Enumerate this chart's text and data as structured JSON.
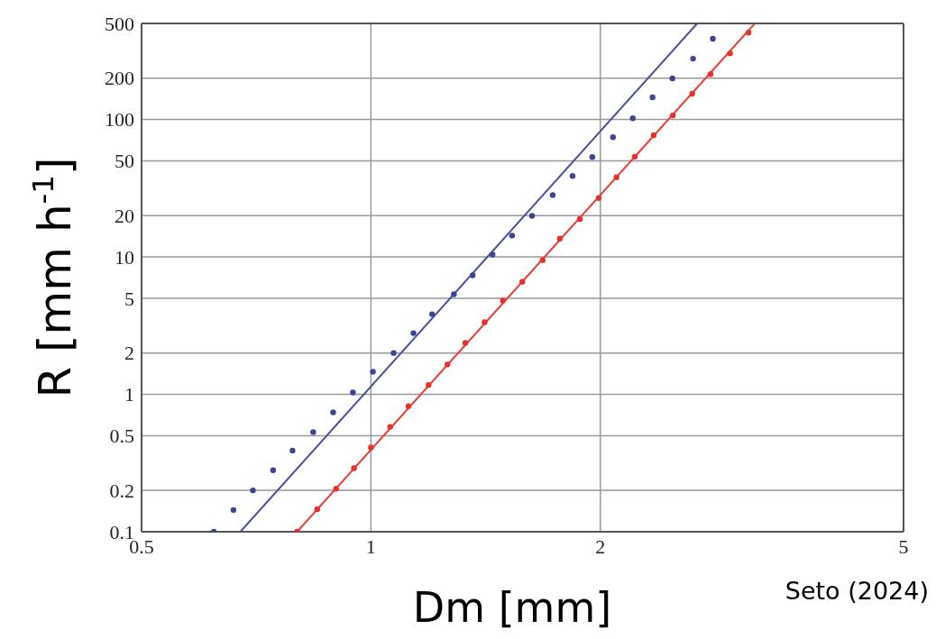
{
  "chart_data": {
    "type": "scatter",
    "xlabel": "Dm [mm]",
    "ylabel": "R [mm h$^{-1}$]",
    "log": "xy",
    "grid": true,
    "line_style": "solid",
    "xlim": [
      0.5,
      5
    ],
    "xticks": [
      0.5,
      1,
      2,
      5
    ],
    "ylim": [
      0.1,
      500
    ],
    "yticks": [
      0.1,
      0.2,
      0.5,
      1,
      2,
      5,
      10,
      20,
      50,
      100,
      200,
      500
    ],
    "annotations": [
      "Seto (2024)"
    ],
    "series": [
      {
        "marker": "circle",
        "color": "#3d4592",
        "x": [
          0.622,
          0.66,
          0.7,
          0.744,
          0.789,
          0.84,
          0.892,
          0.947,
          1.006,
          1.071,
          1.137,
          1.203,
          1.285,
          1.36,
          1.444,
          1.532,
          1.627,
          1.732,
          1.839,
          1.952,
          2.078,
          2.206,
          2.342,
          2.487,
          2.647,
          2.81
        ],
        "values": [
          0.1,
          0.144,
          0.2,
          0.28,
          0.39,
          0.53,
          0.74,
          1.03,
          1.46,
          2.0,
          2.79,
          3.83,
          5.35,
          7.34,
          10.4,
          14.3,
          19.9,
          28.2,
          38.8,
          53.3,
          74.3,
          102,
          145,
          199,
          277,
          387
        ]
      },
      {
        "marker": "circle",
        "color": "#e8302a",
        "x": [
          0.8,
          0.85,
          0.9,
          0.95,
          1.0,
          1.06,
          1.12,
          1.19,
          1.26,
          1.33,
          1.41,
          1.49,
          1.58,
          1.68,
          1.77,
          1.88,
          1.99,
          2.1,
          2.22,
          2.35,
          2.49,
          2.64,
          2.79,
          2.96,
          3.13
        ],
        "values": [
          0.1,
          0.146,
          0.206,
          0.29,
          0.41,
          0.58,
          0.82,
          1.17,
          1.65,
          2.37,
          3.35,
          4.81,
          6.59,
          9.47,
          13.6,
          18.9,
          26.8,
          37.9,
          53.6,
          76.9,
          107,
          154,
          214,
          303,
          429
        ]
      },
      {
        "type": "line",
        "marker": "none",
        "color": "#4a4f9e",
        "x": [
          0.674,
          2.68
        ],
        "values": [
          0.1,
          500
        ]
      },
      {
        "type": "line",
        "marker": "none",
        "color": "#ee3a33",
        "x": [
          0.8,
          3.19
        ],
        "values": [
          0.1,
          500
        ]
      }
    ]
  }
}
